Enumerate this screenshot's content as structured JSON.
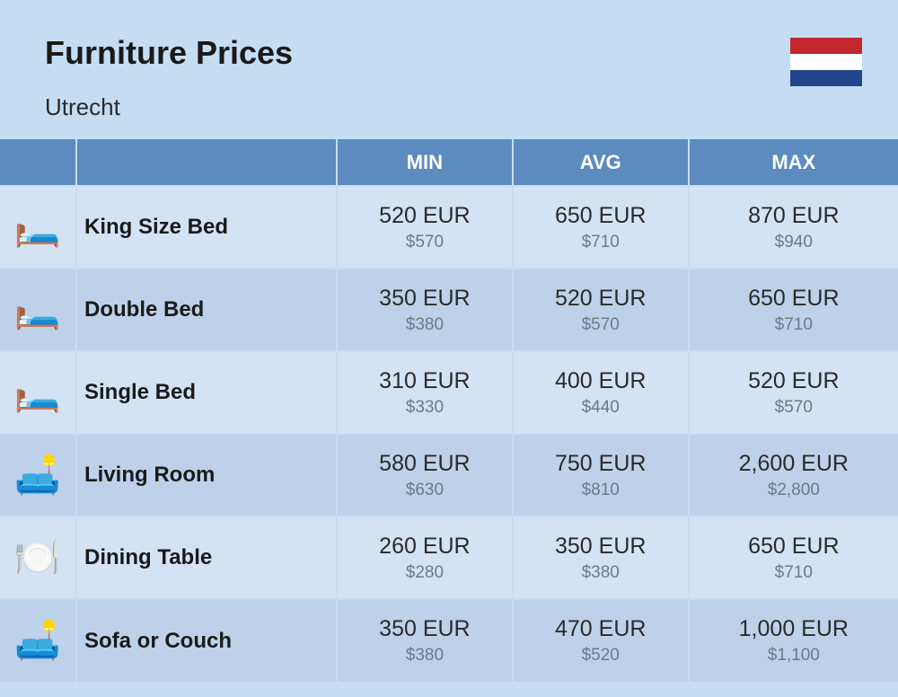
{
  "title": "Furniture Prices",
  "subtitle": "Utrecht",
  "flag_colors": [
    "#c1272d",
    "#ffffff",
    "#21468b"
  ],
  "columns": [
    "",
    "",
    "MIN",
    "AVG",
    "MAX"
  ],
  "colors": {
    "page_bg": "#c5ddf2",
    "header_bg": "#5b8bbf",
    "row_odd": "#d3e3f4",
    "row_even": "#bdd2ea",
    "text_main": "#2a2a2a",
    "text_sub": "#6a7a8a"
  },
  "rows": [
    {
      "icon": "🛏️",
      "name": "King Size Bed",
      "min_eur": "520 EUR",
      "min_usd": "$570",
      "avg_eur": "650 EUR",
      "avg_usd": "$710",
      "max_eur": "870 EUR",
      "max_usd": "$940"
    },
    {
      "icon": "🛏️",
      "name": "Double Bed",
      "min_eur": "350 EUR",
      "min_usd": "$380",
      "avg_eur": "520 EUR",
      "avg_usd": "$570",
      "max_eur": "650 EUR",
      "max_usd": "$710"
    },
    {
      "icon": "🛏️",
      "name": "Single Bed",
      "min_eur": "310 EUR",
      "min_usd": "$330",
      "avg_eur": "400 EUR",
      "avg_usd": "$440",
      "max_eur": "520 EUR",
      "max_usd": "$570"
    },
    {
      "icon": "🛋️",
      "name": "Living Room",
      "min_eur": "580 EUR",
      "min_usd": "$630",
      "avg_eur": "750 EUR",
      "avg_usd": "$810",
      "max_eur": "2,600 EUR",
      "max_usd": "$2,800"
    },
    {
      "icon": "🍽️",
      "name": "Dining Table",
      "min_eur": "260 EUR",
      "min_usd": "$280",
      "avg_eur": "350 EUR",
      "avg_usd": "$380",
      "max_eur": "650 EUR",
      "max_usd": "$710"
    },
    {
      "icon": "🛋️",
      "name": "Sofa or Couch",
      "min_eur": "350 EUR",
      "min_usd": "$380",
      "avg_eur": "470 EUR",
      "avg_usd": "$520",
      "max_eur": "1,000 EUR",
      "max_usd": "$1,100"
    }
  ]
}
